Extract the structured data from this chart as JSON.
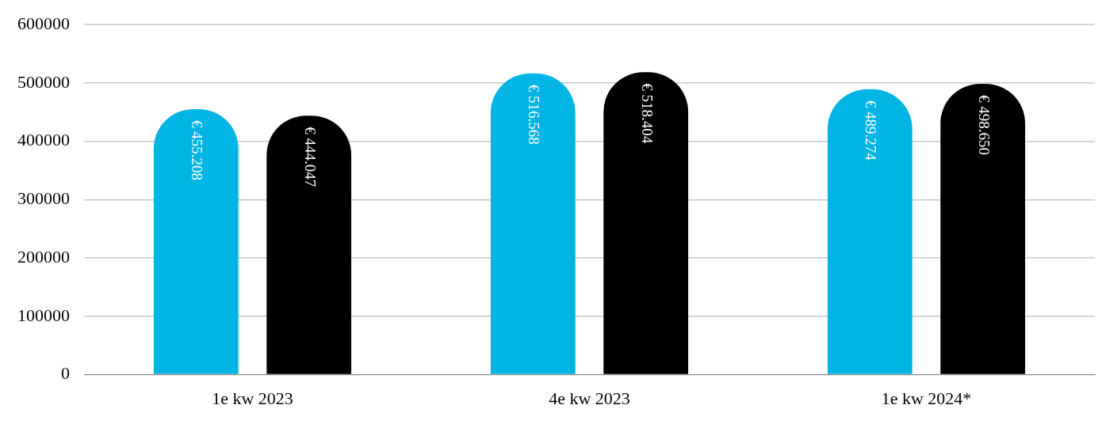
{
  "chart_data": {
    "type": "bar",
    "categories": [
      "1e kw 2023",
      "4e kw 2023",
      "1e kw 2024*"
    ],
    "series": [
      {
        "color": "#00b4e4",
        "values": [
          455208,
          516568,
          489274
        ],
        "value_labels": [
          "€ 455.208",
          "€ 516.568",
          "€ 489.274"
        ]
      },
      {
        "color": "#000000",
        "values": [
          444047,
          518404,
          498650
        ],
        "value_labels": [
          "€ 444.047",
          "€ 518.404",
          "€ 498.650"
        ]
      }
    ],
    "ylim": [
      0,
      600000
    ],
    "yticks": [
      0,
      100000,
      200000,
      300000,
      400000,
      500000,
      600000
    ],
    "grid": "y"
  }
}
